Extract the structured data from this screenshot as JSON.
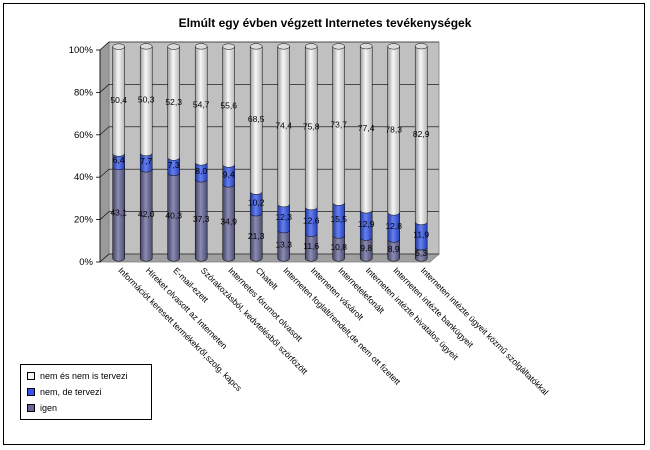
{
  "chart_data": {
    "type": "bar",
    "stacked": true,
    "percent": true,
    "title": "Elmúlt egy évben végzett Internetes tevékenységek",
    "ylim": [
      0,
      100
    ],
    "yticks": [
      "0%",
      "20%",
      "40%",
      "60%",
      "80%",
      "100%"
    ],
    "categories": [
      "Információt keresett termékekről,szolg. kapcs",
      "Híreket olvasott az Interneten",
      "E-mail-ezett",
      "Szórakozásból, kedvtelésből szörfözött",
      "Internetes fórumot olvasott",
      "Chatelt",
      "Interneten foglalt/rendelt,de nem ott fizetett",
      "Interneten vásárolt",
      "Internetelefonált",
      "Interneten intézte hivatalos ügyeit",
      "Interneten intézte bankügyeit",
      "Interneten intézte ügyeit közmű szolgáltatókkal"
    ],
    "series": [
      {
        "name": "igen",
        "color": "#666699",
        "values": [
          43.1,
          42.0,
          40.3,
          37.3,
          34.9,
          21.3,
          13.3,
          11.6,
          10.8,
          9.8,
          8.9,
          5.3
        ]
      },
      {
        "name": "nem, de tervezi",
        "color": "#3355ee",
        "values": [
          6.4,
          7.7,
          7.3,
          8.0,
          9.4,
          10.2,
          12.3,
          12.6,
          15.5,
          12.9,
          12.8,
          11.9
        ]
      },
      {
        "name": "nem és nem is tervezi",
        "color": "#f4f4f4",
        "values": [
          50.4,
          50.3,
          52.3,
          54.7,
          55.6,
          68.5,
          74.4,
          75.8,
          73.7,
          77.4,
          78.3,
          82.9
        ]
      }
    ],
    "legend_order": [
      "nem és nem is tervezi",
      "nem, de tervezi",
      "igen"
    ],
    "grid": true,
    "legend_position": "bottom-left"
  }
}
